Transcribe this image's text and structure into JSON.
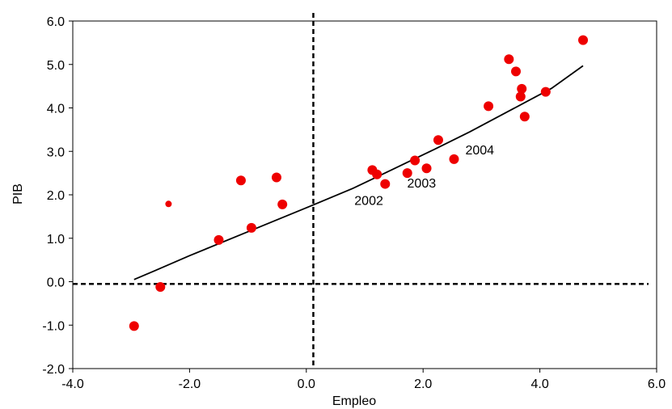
{
  "chart_data": {
    "type": "scatter",
    "xlabel": "Empleo",
    "ylabel": "PIB",
    "xlim": [
      -4.0,
      6.0
    ],
    "ylim": [
      -2.0,
      6.0
    ],
    "x_ticks": [
      "-4.0",
      "-2.0",
      "0.0",
      "2.0",
      "4.0",
      "6.0"
    ],
    "y_ticks": [
      "-2.0",
      "-1.0",
      "0.0",
      "1.0",
      "2.0",
      "3.0",
      "4.0",
      "5.0",
      "6.0"
    ],
    "grid": false,
    "colors": {
      "points": "#ee0000",
      "trend": "#000000",
      "reference": "#000000"
    },
    "points": [
      {
        "x": -2.95,
        "y": -1.02
      },
      {
        "x": -2.5,
        "y": -0.12
      },
      {
        "x": -2.36,
        "y": 1.79,
        "small": true
      },
      {
        "x": -1.5,
        "y": 0.96
      },
      {
        "x": -1.12,
        "y": 2.33
      },
      {
        "x": -0.94,
        "y": 1.24
      },
      {
        "x": -0.51,
        "y": 2.4
      },
      {
        "x": -0.41,
        "y": 1.78
      },
      {
        "x": 1.13,
        "y": 2.57
      },
      {
        "x": 1.21,
        "y": 2.47
      },
      {
        "x": 1.35,
        "y": 2.25
      },
      {
        "x": 1.73,
        "y": 2.5
      },
      {
        "x": 1.86,
        "y": 2.79
      },
      {
        "x": 2.06,
        "y": 2.61
      },
      {
        "x": 2.26,
        "y": 3.26
      },
      {
        "x": 2.53,
        "y": 2.82
      },
      {
        "x": 3.12,
        "y": 4.04
      },
      {
        "x": 3.47,
        "y": 5.12
      },
      {
        "x": 3.59,
        "y": 4.84
      },
      {
        "x": 3.69,
        "y": 4.44
      },
      {
        "x": 3.67,
        "y": 4.26
      },
      {
        "x": 3.74,
        "y": 3.8
      },
      {
        "x": 4.1,
        "y": 4.37
      },
      {
        "x": 4.74,
        "y": 5.56
      }
    ],
    "trend_line": [
      {
        "x": -2.95,
        "y": 0.05
      },
      {
        "x": -2.6,
        "y": 0.25
      },
      {
        "x": -2.0,
        "y": 0.6
      },
      {
        "x": -1.0,
        "y": 1.15
      },
      {
        "x": 0.0,
        "y": 1.7
      },
      {
        "x": 0.8,
        "y": 2.15
      },
      {
        "x": 1.5,
        "y": 2.6
      },
      {
        "x": 2.2,
        "y": 3.05
      },
      {
        "x": 2.8,
        "y": 3.45
      },
      {
        "x": 3.5,
        "y": 3.95
      },
      {
        "x": 4.2,
        "y": 4.45
      },
      {
        "x": 4.74,
        "y": 4.97
      }
    ],
    "reference_lines": {
      "vertical_x": 0.12,
      "horizontal_y": -0.05
    },
    "annotations": [
      {
        "text": "2002",
        "x": 1.35,
        "y": 2.25
      },
      {
        "text": "2003",
        "x": 2.06,
        "y": 2.61
      },
      {
        "text": "2004",
        "x": 2.53,
        "y": 2.82
      }
    ]
  }
}
